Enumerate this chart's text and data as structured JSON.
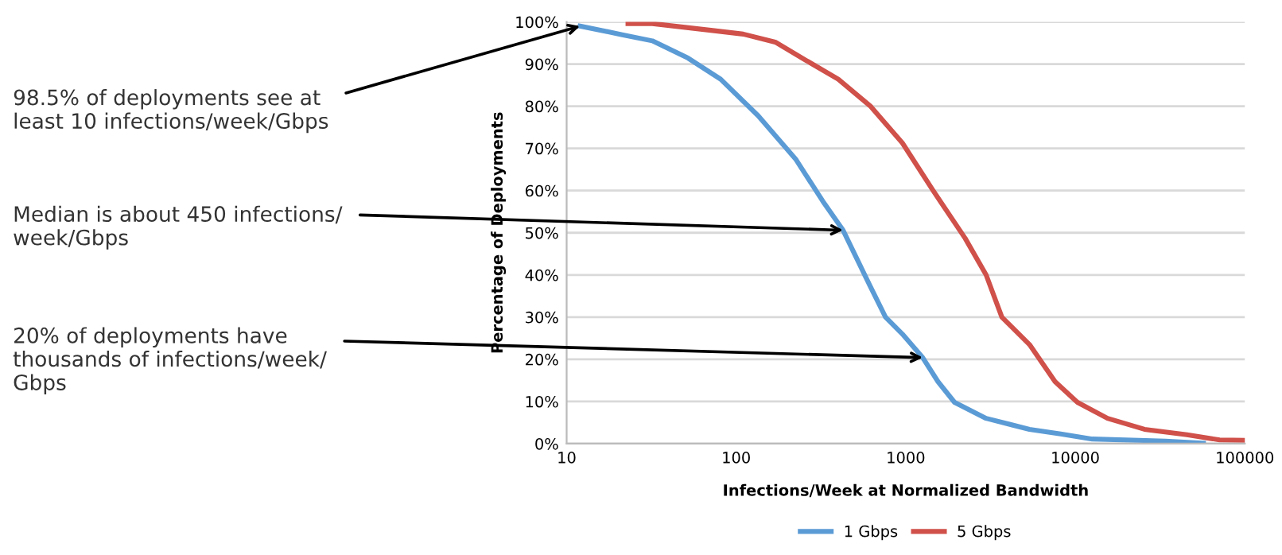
{
  "chart_data": {
    "type": "line",
    "xlabel": "Infections/Week at Normalized Bandwidth",
    "ylabel": "Percentage of Deployments",
    "log": "x",
    "xlim": [
      10,
      100000
    ],
    "xticks": [
      10,
      100,
      1000,
      10000,
      100000
    ],
    "ylim": [
      0,
      100
    ],
    "yticks": [
      {
        "value": 0,
        "label": "0%"
      },
      {
        "value": 10,
        "label": "10%"
      },
      {
        "value": 20,
        "label": "20%"
      },
      {
        "value": 30,
        "label": "30%"
      },
      {
        "value": 40,
        "label": "40%"
      },
      {
        "value": 50,
        "label": "50%"
      },
      {
        "value": 60,
        "label": "60%"
      },
      {
        "value": 70,
        "label": "70%"
      },
      {
        "value": 80,
        "label": "80%"
      },
      {
        "value": 90,
        "label": "90%"
      },
      {
        "value": 100,
        "label": "100%"
      }
    ],
    "grid": "y",
    "legend": "bottom",
    "marker": "none",
    "line_style": "solid",
    "series": [
      {
        "name": "1 Gbps",
        "color": "#5b9bd5",
        "x": [
          12,
          21,
          32,
          52,
          81,
          135,
          224,
          324,
          427,
          616,
          760,
          955,
          1260,
          1550,
          1940,
          2980,
          5370,
          8200,
          12600,
          34000,
          57000
        ],
        "values": [
          99,
          97,
          95.5,
          91.4,
          86.4,
          77.7,
          67.5,
          57.5,
          50.6,
          37.4,
          30,
          26,
          20.4,
          14.7,
          9.8,
          6,
          3.4,
          2.3,
          1.1,
          0.6,
          0.1
        ]
      },
      {
        "name": "5 Gbps",
        "color": "#d0504a",
        "x": [
          23,
          32,
          71,
          110,
          170,
          260,
          400,
          616,
          955,
          1450,
          2240,
          2980,
          3690,
          5370,
          7600,
          10300,
          15500,
          25600,
          45600,
          71000,
          100000
        ],
        "values": [
          99.6,
          99.6,
          98,
          97.1,
          95.2,
          90.8,
          86.4,
          80.1,
          71.3,
          60,
          48.7,
          40,
          30,
          23.5,
          14.7,
          9.8,
          6,
          3.4,
          2.1,
          0.9,
          0.8
        ]
      }
    ],
    "annotations": [
      {
        "text": "98.5% of deployments see at\nleast 10 infections/week/Gbps",
        "x": 12,
        "y": 99
      },
      {
        "text": "Median is about 450 infections/\nweek/Gbps",
        "x": 427,
        "y": 50.6
      },
      {
        "text": "20% of deployments have\nthousands of infections/week/\nGbps",
        "x": 1260,
        "y": 20.4
      }
    ]
  }
}
